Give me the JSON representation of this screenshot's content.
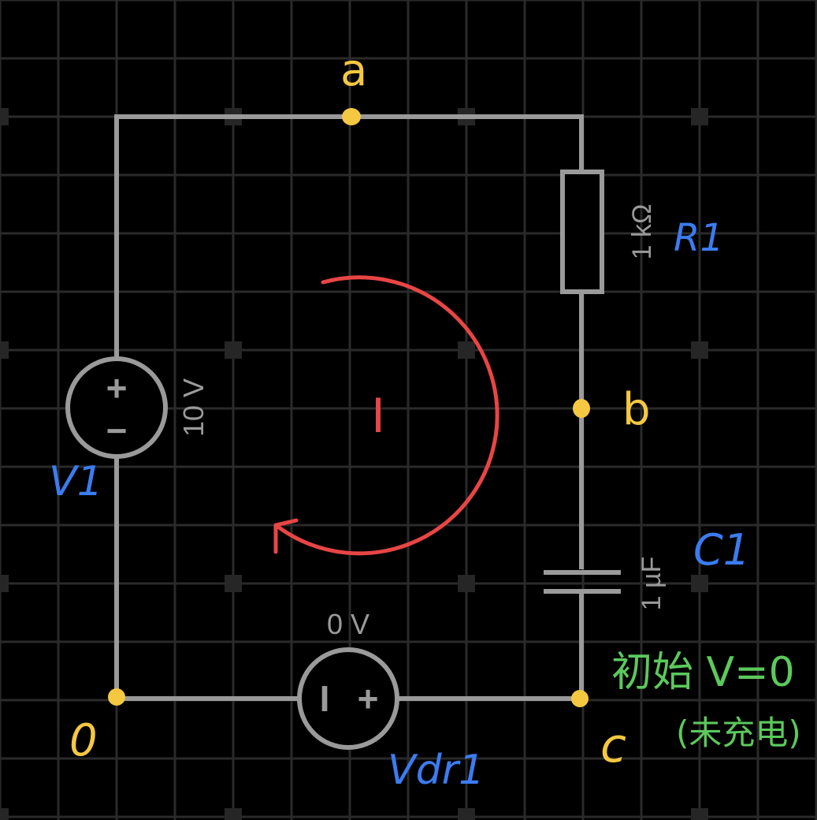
{
  "colors": {
    "background": "#000000",
    "grid": "#2a2a2a",
    "grid_major": "#1d1d1d",
    "wire": "#9a9a9a",
    "node": "#f5c842",
    "current": "#e84545",
    "name_label": "#3b7cf0",
    "note": "#5cc95c",
    "value_text": "#9a9a9a"
  },
  "nodes": {
    "a": "a",
    "b": "b",
    "c": "c",
    "ground": "0"
  },
  "components": {
    "v1": {
      "name": "V1",
      "value": "10 V",
      "plus": "+",
      "minus": "−"
    },
    "r1": {
      "name": "R1",
      "value": "1 kΩ"
    },
    "c1": {
      "name": "C1",
      "value": "1 µF"
    },
    "vdr1": {
      "name": "Vdr1",
      "value": "0 V",
      "plus": "+",
      "minus": "I"
    }
  },
  "current_label": "I",
  "note": {
    "line1": "初始 V=0",
    "line2": "(未充电)"
  },
  "icons": [
    "voltage-source-icon",
    "resistor-icon",
    "capacitor-icon",
    "current-loop-arrow-icon"
  ]
}
